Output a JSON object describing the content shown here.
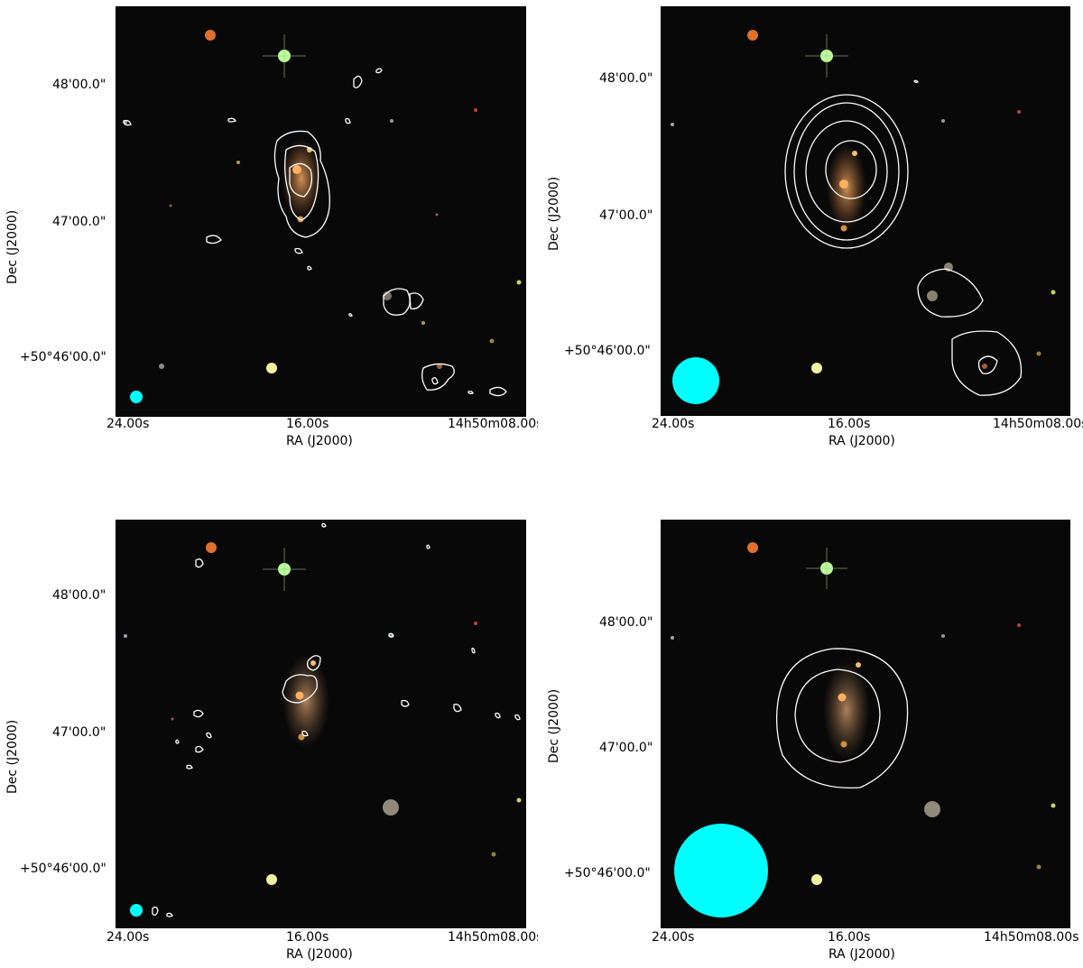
{
  "figure": {
    "panels": [
      {
        "ylabel": "Dec (J2000)",
        "xlabel": "RA (J2000)",
        "yticks": [
          "48'00.0\"",
          "47'00.0\"",
          "+50°46'00.0\""
        ],
        "xticks": [
          "24.00s",
          "16.00s",
          "14h50m08.00s"
        ]
      },
      {
        "ylabel": "Dec (J2000)",
        "xlabel": "RA (J2000)",
        "yticks": [
          "48'00.0\"",
          "47'00.0\"",
          "+50°46'00.0\""
        ],
        "xticks": [
          "24.00s",
          "16.00s",
          "14h50m08.00s"
        ]
      },
      {
        "ylabel": "Dec (J2000)",
        "xlabel": "RA (J2000)",
        "yticks": [
          "48'00.0\"",
          "47'00.0\"",
          "+50°46'00.0\""
        ],
        "xticks": [
          "24.00s",
          "16.00s",
          "14h50m08.00s"
        ]
      },
      {
        "ylabel": "Dec (J2000)",
        "xlabel": "RA (J2000)",
        "yticks": [
          "48'00.0\"",
          "47'00.0\"",
          "+50°46'00.0\""
        ],
        "xticks": [
          "24.00s",
          "16.00s",
          "14h50m08.00s"
        ]
      }
    ],
    "colors": {
      "contour": "#ffffff",
      "beam": "#00ffff",
      "background": "#080808"
    }
  }
}
